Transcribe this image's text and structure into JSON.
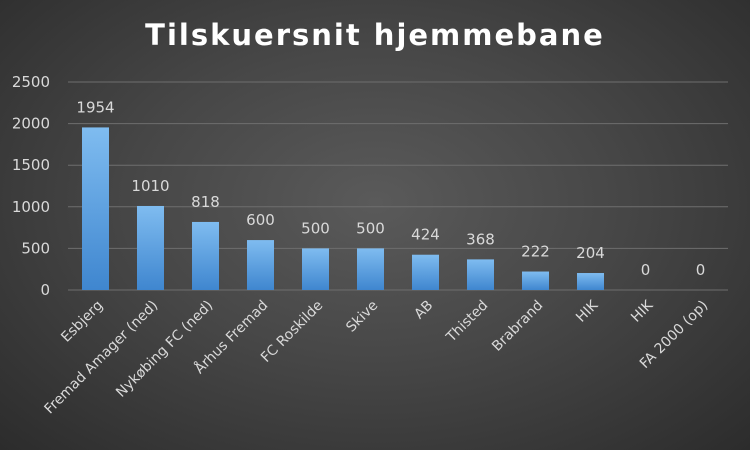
{
  "chart_data": {
    "type": "bar",
    "title": "Tilskuersnit hjemmebane",
    "categories": [
      "Esbjerg",
      "Fremad Amager (ned)",
      "Nykøbing FC (ned)",
      "Århus Fremad",
      "FC Roskilde",
      "Skive",
      "AB",
      "Thisted",
      "Brabrand",
      "HIK",
      "HIK",
      "FA 2000 (op)"
    ],
    "values": [
      1954,
      1010,
      818,
      600,
      500,
      500,
      424,
      368,
      222,
      204,
      0,
      0
    ],
    "data_labels": [
      "1954",
      "1010",
      "818",
      "600",
      "500",
      "500",
      "424",
      "368",
      "222",
      "204",
      "0",
      "0"
    ],
    "ylim": [
      0,
      2500
    ],
    "yticks": [
      0,
      500,
      1000,
      1500,
      2000,
      2500
    ],
    "ytick_labels": [
      "0",
      "500",
      "1000",
      "1500",
      "2000",
      "2500"
    ],
    "xlabel": "",
    "ylabel": "",
    "grid": true,
    "legend": "none",
    "colors": {
      "bar_top": "#7fbcf0",
      "bar_bottom": "#3f86cf",
      "gridline": "#6e6e6e",
      "text": "#d9d9d9",
      "title": "#ffffff"
    }
  }
}
